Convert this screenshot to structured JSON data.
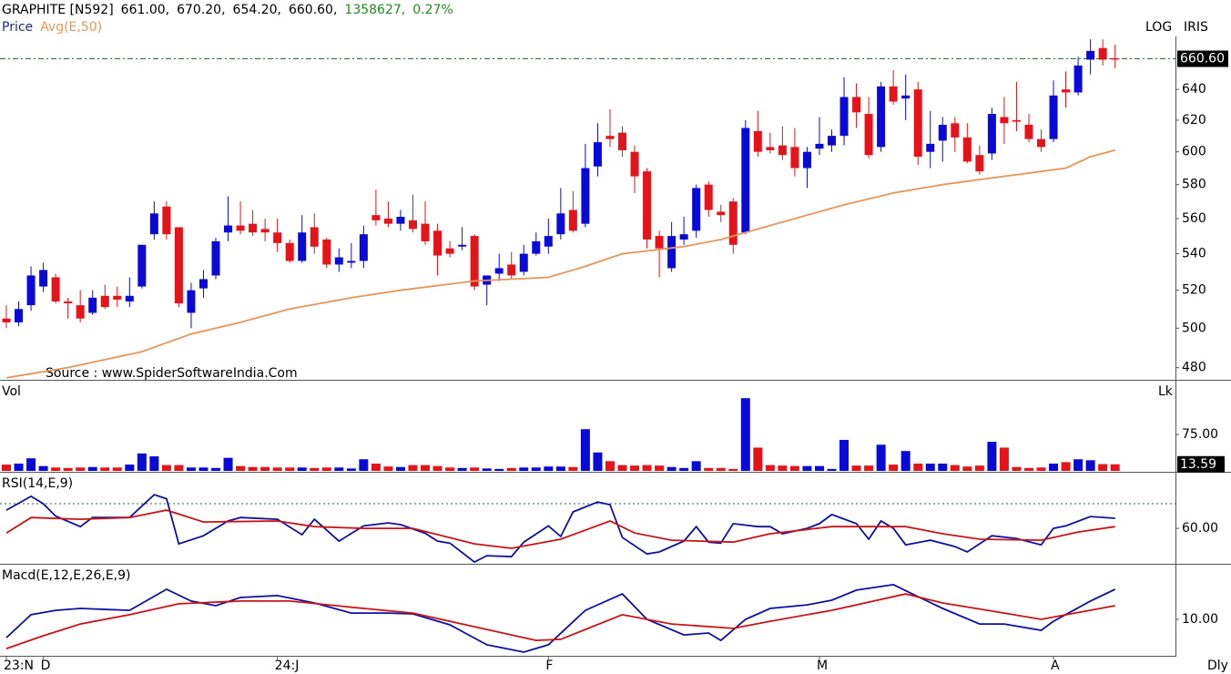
{
  "chart_data": [
    {
      "type": "candlestick",
      "title": "GRAPHITE [N592]",
      "quote": [
        "661.00,",
        "670.20,",
        "654.20,",
        "660.60,"
      ],
      "quote_volume": "1358627,",
      "quote_change": "0.27%",
      "quote_color": "#1e8c1e",
      "scale_label": "LOG",
      "brand": "IRIS",
      "source": "Source : www.SpiderSoftwareIndia.Com",
      "log_scale": true,
      "ylim": [
        474,
        702
      ],
      "yticks": [
        480,
        500,
        520,
        540,
        560,
        580,
        600,
        620,
        640
      ],
      "last_price": {
        "value": 660.6,
        "label": "660.60"
      },
      "up_color": "#0a0ad8",
      "down_color": "#e5141b",
      "series": [
        {
          "name": "Price",
          "color": "#1a2a8a",
          "open": [
            505,
            503,
            512,
            522,
            527,
            514,
            512,
            508,
            517,
            517,
            514,
            522,
            551,
            567,
            555,
            508,
            521,
            528,
            552,
            556,
            557,
            554,
            552,
            546,
            536,
            555,
            548,
            534,
            535,
            536,
            562,
            560,
            557,
            559,
            557,
            553,
            543,
            544,
            550,
            523,
            529,
            534,
            530,
            540,
            544,
            551,
            565,
            557,
            591,
            610,
            612,
            600,
            588,
            550,
            532,
            548,
            553,
            580,
            564,
            570,
            552,
            613,
            603,
            604,
            603,
            590,
            602,
            604,
            610,
            635,
            624,
            603,
            642,
            634,
            640,
            600,
            607,
            618,
            609,
            598,
            599,
            622,
            620,
            617,
            608,
            608,
            640,
            638,
            660,
            668,
            661
          ],
          "high": [
            512,
            514,
            533,
            535,
            529,
            516,
            520,
            520,
            523,
            522,
            527,
            545,
            570,
            570,
            555,
            524,
            531,
            549,
            573,
            570,
            565,
            560,
            560,
            548,
            562,
            563,
            549,
            543,
            546,
            556,
            577,
            570,
            565,
            574,
            570,
            557,
            547,
            555,
            551,
            527,
            540,
            541,
            545,
            552,
            560,
            578,
            576,
            605,
            618,
            627,
            616,
            604,
            590,
            553,
            558,
            561,
            580,
            582,
            568,
            572,
            620,
            626,
            612,
            616,
            615,
            603,
            622,
            614,
            648,
            644,
            635,
            645,
            653,
            650,
            645,
            626,
            622,
            622,
            618,
            604,
            628,
            635,
            645,
            624,
            614,
            646,
            652,
            662,
            674,
            674,
            670.2
          ],
          "low": [
            500,
            501,
            509,
            519,
            513,
            505,
            503,
            507,
            510,
            511,
            511,
            521,
            548,
            548,
            511,
            500,
            516,
            526,
            547,
            551,
            550,
            547,
            541,
            535,
            535,
            540,
            532,
            530,
            532,
            532,
            556,
            555,
            553,
            552,
            545,
            528,
            538,
            542,
            520,
            512,
            525,
            526,
            528,
            539,
            540,
            548,
            552,
            555,
            585,
            603,
            597,
            575,
            543,
            527,
            530,
            545,
            549,
            561,
            558,
            540,
            551,
            597,
            599,
            595,
            585,
            578,
            598,
            600,
            604,
            615,
            596,
            600,
            630,
            620,
            592,
            590,
            594,
            600,
            593,
            586,
            595,
            605,
            613,
            606,
            600,
            606,
            628,
            636,
            650,
            656,
            654.2
          ],
          "close": [
            503,
            510,
            528,
            531,
            514,
            513,
            505,
            516,
            511,
            515,
            517,
            545,
            563,
            551,
            513,
            520,
            526,
            547,
            556,
            553,
            552,
            552,
            546,
            536,
            552,
            544,
            534,
            538,
            536,
            551,
            559,
            557,
            561,
            554,
            547,
            539,
            540,
            545,
            522,
            528,
            532,
            528,
            540,
            547,
            550,
            563,
            553,
            590,
            606,
            608,
            601,
            585,
            548,
            543,
            550,
            551,
            578,
            565,
            562,
            545,
            615,
            600,
            601,
            598,
            590,
            600,
            605,
            610,
            635,
            625,
            598,
            642,
            632,
            636,
            597,
            605,
            617,
            609,
            594,
            588,
            624,
            618,
            619,
            608,
            603,
            636,
            638,
            656,
            666,
            660,
            660.6
          ]
        },
        {
          "name": "Avg(E,50)",
          "color": "#e8955a",
          "x": [
            0,
            5,
            11,
            15,
            19,
            23,
            28,
            32,
            38,
            44,
            47,
            50,
            55,
            58,
            60,
            64,
            68,
            72,
            76,
            80,
            84,
            86,
            88,
            90
          ],
          "values": [
            475,
            480,
            488,
            497,
            503,
            510,
            516,
            520,
            525,
            527,
            533,
            540,
            544,
            548,
            552,
            560,
            568,
            575,
            580,
            584,
            588,
            590,
            597,
            601
          ]
        }
      ]
    },
    {
      "type": "bar",
      "title": "Vol",
      "unit": "Lk",
      "ylim": [
        0,
        186
      ],
      "yticks": [
        {
          "value": 75,
          "label": "75.00"
        }
      ],
      "values": [
        13,
        15,
        26,
        10,
        7,
        6,
        7,
        8,
        7,
        7,
        13,
        36,
        30,
        12,
        12,
        7,
        7,
        6,
        27,
        10,
        8,
        8,
        7,
        7,
        7,
        6,
        7,
        7,
        5,
        24,
        15,
        9,
        8,
        12,
        12,
        10,
        7,
        6,
        7,
        5,
        4,
        6,
        7,
        7,
        9,
        9,
        8,
        86,
        38,
        20,
        12,
        11,
        12,
        11,
        8,
        6,
        20,
        6,
        6,
        4,
        150,
        48,
        12,
        11,
        10,
        10,
        10,
        4,
        64,
        11,
        11,
        54,
        13,
        41,
        15,
        15,
        15,
        12,
        9,
        11,
        60,
        48,
        8,
        6,
        7,
        15,
        18,
        24,
        22,
        14,
        13.59
      ]
    },
    {
      "type": "line",
      "title": "RSI(14,E,9)",
      "ylim": [
        45.6,
        82.6
      ],
      "yticks": [
        {
          "value": 60,
          "label": "60.00"
        }
      ],
      "reference_line": 70,
      "series": [
        {
          "color": "#1010a0",
          "x": [
            0,
            2,
            3,
            4,
            6,
            7,
            10,
            12,
            13,
            14,
            16,
            18,
            19,
            22,
            24,
            25,
            27,
            29,
            31,
            32,
            34,
            35,
            36,
            38,
            39,
            41,
            42,
            44,
            45,
            46,
            48,
            49,
            50,
            52,
            53,
            55,
            56,
            57,
            58,
            59,
            61,
            62,
            63,
            65,
            66,
            67,
            69,
            70,
            71,
            72,
            73,
            75,
            77,
            78,
            80,
            82,
            84,
            85,
            86,
            88,
            90
          ],
          "values": [
            67.4,
            73,
            70,
            65,
            60.7,
            64.4,
            64.4,
            73.7,
            72,
            53.7,
            57,
            63,
            64.4,
            63.7,
            57.4,
            63.7,
            54.8,
            61,
            62.2,
            61.5,
            58,
            54.8,
            54,
            46.3,
            48.9,
            48.5,
            54.4,
            61,
            56.7,
            66.7,
            70.7,
            69.6,
            56.3,
            49.6,
            50.4,
            54.8,
            60.7,
            54.4,
            54,
            61.9,
            60.7,
            60.7,
            57.8,
            60,
            61.9,
            65.6,
            61.9,
            55.6,
            63,
            60,
            53.3,
            55.2,
            52.6,
            50.4,
            57,
            55.9,
            53.3,
            60,
            61,
            64.8,
            64.1
          ]
        },
        {
          "color": "#c81414",
          "x": [
            0,
            2,
            6,
            10,
            13,
            16,
            22,
            25,
            29,
            33,
            38,
            41,
            45,
            49,
            51,
            54,
            59,
            62,
            67,
            73,
            76,
            79,
            84,
            87,
            90
          ],
          "values": [
            58.1,
            64.4,
            63.7,
            64.4,
            67.4,
            62.6,
            63,
            60.7,
            60,
            60,
            53.7,
            51.9,
            55.6,
            63,
            58.1,
            55.2,
            54.4,
            57.8,
            60.7,
            60.7,
            57.8,
            55.6,
            55.2,
            58.5,
            60.7
          ]
        }
      ]
    },
    {
      "type": "line",
      "title": "Macd(E,12,E,26,E,9)",
      "period": "Dly",
      "ylim": [
        -3.33,
        30
      ],
      "yticks": [
        {
          "value": 10,
          "label": "10.00"
        }
      ],
      "xticks": [
        {
          "value": 0,
          "label": "23:N"
        },
        {
          "value": 3,
          "label": "D"
        },
        {
          "value": 22,
          "label": "24:J"
        },
        {
          "value": 44,
          "label": "F"
        },
        {
          "value": 66,
          "label": "M"
        },
        {
          "value": 85,
          "label": "A"
        }
      ],
      "series": [
        {
          "color": "#1010a0",
          "x": [
            0,
            2,
            4,
            6,
            10,
            13,
            15,
            17,
            19,
            22,
            25,
            28,
            31,
            33,
            36,
            39,
            42,
            44,
            47,
            50,
            52,
            55,
            57,
            58,
            60,
            62,
            65,
            67,
            69,
            72,
            74,
            76,
            79,
            81,
            84,
            85,
            88,
            90
          ],
          "values": [
            3.3,
            11.7,
            13.3,
            14,
            13.3,
            21,
            16.7,
            15,
            18,
            18.7,
            16,
            12.3,
            12.3,
            12,
            8,
            0.7,
            -2,
            0.7,
            13.3,
            19.3,
            10,
            4.3,
            5,
            2.3,
            10,
            14,
            15.3,
            17,
            20.7,
            22.7,
            18.3,
            14,
            8.3,
            8.3,
            6,
            9.3,
            16.7,
            21
          ]
        },
        {
          "color": "#c81414",
          "x": [
            0,
            3,
            6,
            10,
            14,
            19,
            23,
            29,
            33,
            38,
            43,
            45,
            50,
            54,
            59,
            62,
            67,
            73,
            76,
            81,
            84,
            90
          ],
          "values": [
            -0.7,
            4,
            8.3,
            11.7,
            15.7,
            16.7,
            16.7,
            14,
            12.3,
            7.3,
            2.3,
            2.7,
            11.7,
            8.3,
            6.7,
            9.3,
            13.3,
            19.3,
            16,
            12.3,
            10,
            15
          ]
        }
      ]
    }
  ]
}
